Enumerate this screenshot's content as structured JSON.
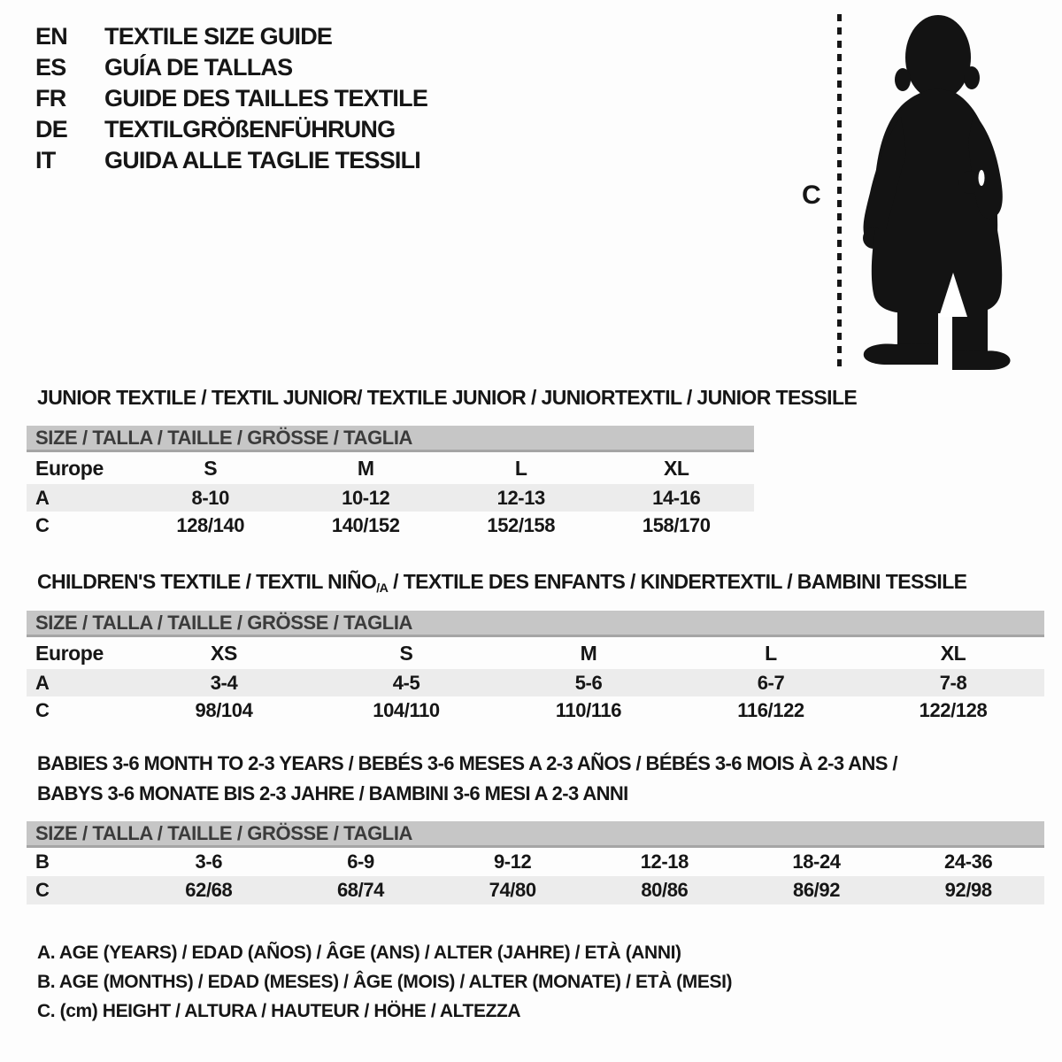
{
  "page": {
    "background": "#fdfdfd",
    "text_color": "#161616",
    "header_bar_gray": "#c6c6c6",
    "header_bar_border_gray": "#a5a5a5",
    "zebra_row_gray": "#ececec",
    "silhouette_black": "#131313"
  },
  "languages": [
    {
      "code": "EN",
      "label": "TEXTILE SIZE GUIDE"
    },
    {
      "code": "ES",
      "label": "GUÍA DE TALLAS"
    },
    {
      "code": "FR",
      "label": "GUIDE DES TAILLES TEXTILE"
    },
    {
      "code": "DE",
      "label": "TEXTILGRÖßENFÜHRUNG"
    },
    {
      "code": "IT",
      "label": "GUIDA ALLE TAGLIE TESSILI"
    }
  ],
  "figure": {
    "measure_label": "C",
    "silhouette_icon": "toddler-silhouette"
  },
  "sections": [
    {
      "id": "junior",
      "title_lines": [
        [
          {
            "text": "JUNIOR TEXTILE / TEXTIL JUNIOR/ TEXTILE JUNIOR / JUNIORTEXTIL / JUNIOR TESSILE"
          }
        ]
      ],
      "size_header": "SIZE / TALLA / TAILLE / GRÖSSE / TAGLIA",
      "rows": [
        {
          "label": "Europe",
          "values": [
            "S",
            "M",
            "L",
            "XL"
          ],
          "shaded": false
        },
        {
          "label": "A",
          "values": [
            "8-10",
            "10-12",
            "12-13",
            "14-16"
          ],
          "shaded": true
        },
        {
          "label": "C",
          "values": [
            "128/140",
            "140/152",
            "152/158",
            "158/170"
          ],
          "shaded": false
        }
      ]
    },
    {
      "id": "children",
      "title_lines": [
        [
          {
            "text": "CHILDREN'S TEXTILE / TEXTIL NIÑO"
          },
          {
            "text": "/A",
            "sub": true
          },
          {
            "text": " / TEXTILE DES ENFANTS / KINDERTEXTIL / BAMBINI TESSILE"
          }
        ]
      ],
      "size_header": "SIZE / TALLA / TAILLE / GRÖSSE / TAGLIA",
      "rows": [
        {
          "label": "Europe",
          "values": [
            "XS",
            "S",
            "M",
            "L",
            "XL"
          ],
          "shaded": false
        },
        {
          "label": "A",
          "values": [
            "3-4",
            "4-5",
            "5-6",
            "6-7",
            "7-8"
          ],
          "shaded": true
        },
        {
          "label": "C",
          "values": [
            "98/104",
            "104/110",
            "110/116",
            "116/122",
            "122/128"
          ],
          "shaded": false
        }
      ]
    },
    {
      "id": "babies",
      "title_lines": [
        [
          {
            "text": "BABIES 3-6 MONTH TO 2-3 YEARS / BEBÉS 3-6 MESES A 2-3 AÑOS / BÉBÉS 3-6 MOIS À 2-3 ANS /"
          }
        ],
        [
          {
            "text": "BABYS 3-6 MONATE BIS 2-3 JAHRE / BAMBINI 3-6 MESI A 2-3 ANNI"
          }
        ]
      ],
      "size_header": "SIZE / TALLA / TAILLE / GRÖSSE / TAGLIA",
      "rows": [
        {
          "label": "B",
          "values": [
            "3-6",
            "6-9",
            "9-12",
            "12-18",
            "18-24",
            "24-36"
          ],
          "shaded": false
        },
        {
          "label": "C",
          "values": [
            "62/68",
            "68/74",
            "74/80",
            "80/86",
            "86/92",
            "92/98"
          ],
          "shaded": true
        }
      ]
    }
  ],
  "footnotes": [
    "A. AGE (YEARS) / EDAD (AÑOS) / ÂGE (ANS) / ALTER (JAHRE) / ETÀ (ANNI)",
    "B. AGE (MONTHS) / EDAD (MESES) / ÂGE (MOIS) / ALTER (MONATE) / ETÀ (MESI)",
    "C. (cm) HEIGHT / ALTURA / HAUTEUR / HÖHE / ALTEZZA"
  ]
}
